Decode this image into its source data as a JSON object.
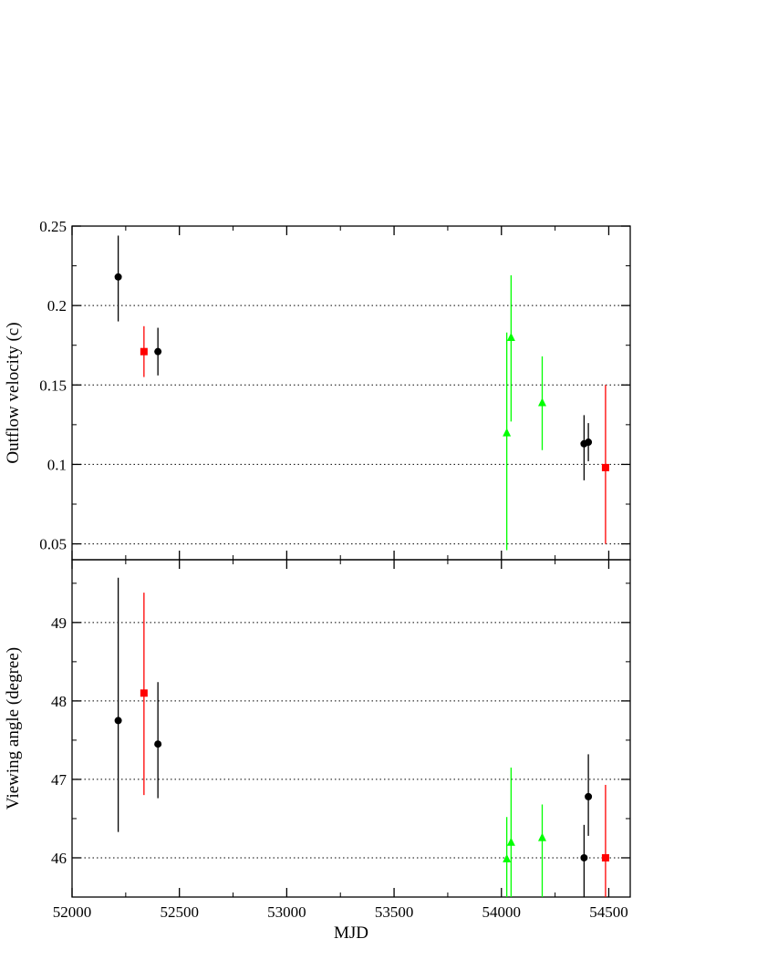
{
  "chart_data": [
    {
      "type": "scatter",
      "title": "",
      "xlabel": "",
      "ylabel": "Outflow velocity (c)",
      "xlim": [
        52000,
        54600
      ],
      "ylim": [
        0.04,
        0.25
      ],
      "yticks": [
        0.05,
        0.1,
        0.15,
        0.2,
        0.25
      ],
      "ytick_labels": [
        "0.05",
        "0.1",
        "0.15",
        "0.2",
        "0.25"
      ],
      "grid_y": [
        0.05,
        0.1,
        0.15,
        0.2
      ],
      "grid": true,
      "series": [
        {
          "color": "#000000",
          "marker": "circle",
          "points": [
            {
              "x": 52215,
              "y": 0.218,
              "ylo": 0.19,
              "yhi": 0.244
            },
            {
              "x": 52400,
              "y": 0.171,
              "ylo": 0.156,
              "yhi": 0.186
            },
            {
              "x": 54385,
              "y": 0.113,
              "ylo": 0.09,
              "yhi": 0.131
            },
            {
              "x": 54405,
              "y": 0.114,
              "ylo": 0.102,
              "yhi": 0.126
            }
          ]
        },
        {
          "color": "#ff0000",
          "marker": "square",
          "points": [
            {
              "x": 52335,
              "y": 0.171,
              "ylo": 0.155,
              "yhi": 0.187
            },
            {
              "x": 54485,
              "y": 0.098,
              "ylo": 0.05,
              "yhi": 0.15
            }
          ]
        },
        {
          "color": "#00ff00",
          "marker": "triangle",
          "points": [
            {
              "x": 54025,
              "y": 0.12,
              "ylo": 0.046,
              "yhi": 0.183
            },
            {
              "x": 54045,
              "y": 0.18,
              "ylo": 0.127,
              "yhi": 0.219
            },
            {
              "x": 54190,
              "y": 0.139,
              "ylo": 0.109,
              "yhi": 0.168
            }
          ]
        }
      ]
    },
    {
      "type": "scatter",
      "title": "",
      "xlabel": "MJD",
      "ylabel": "Viewing angle (degree)",
      "xlim": [
        52000,
        54600
      ],
      "ylim": [
        45.5,
        49.8
      ],
      "yticks": [
        46,
        47,
        48,
        49
      ],
      "ytick_labels": [
        "46",
        "47",
        "48",
        "49"
      ],
      "xticks": [
        52000,
        52500,
        53000,
        53500,
        54000,
        54500
      ],
      "xtick_labels": [
        "52000",
        "52500",
        "53000",
        "53500",
        "54000",
        "54500"
      ],
      "grid_y": [
        46,
        47,
        48,
        49
      ],
      "grid": true,
      "series": [
        {
          "color": "#000000",
          "marker": "circle",
          "points": [
            {
              "x": 52215,
              "y": 47.75,
              "ylo": 46.33,
              "yhi": 49.57
            },
            {
              "x": 52400,
              "y": 47.45,
              "ylo": 46.76,
              "yhi": 48.24
            },
            {
              "x": 54385,
              "y": 46.0,
              "ylo": 45.5,
              "yhi": 46.42
            },
            {
              "x": 54405,
              "y": 46.78,
              "ylo": 46.28,
              "yhi": 47.32
            }
          ]
        },
        {
          "color": "#ff0000",
          "marker": "square",
          "points": [
            {
              "x": 52335,
              "y": 48.1,
              "ylo": 46.8,
              "yhi": 49.38
            },
            {
              "x": 54485,
              "y": 46.0,
              "ylo": 45.5,
              "yhi": 46.93
            }
          ]
        },
        {
          "color": "#00ff00",
          "marker": "triangle",
          "points": [
            {
              "x": 54025,
              "y": 45.99,
              "ylo": 45.5,
              "yhi": 46.52
            },
            {
              "x": 54045,
              "y": 46.2,
              "ylo": 45.5,
              "yhi": 47.15
            },
            {
              "x": 54190,
              "y": 46.26,
              "ylo": 45.5,
              "yhi": 46.68
            }
          ]
        }
      ]
    }
  ]
}
